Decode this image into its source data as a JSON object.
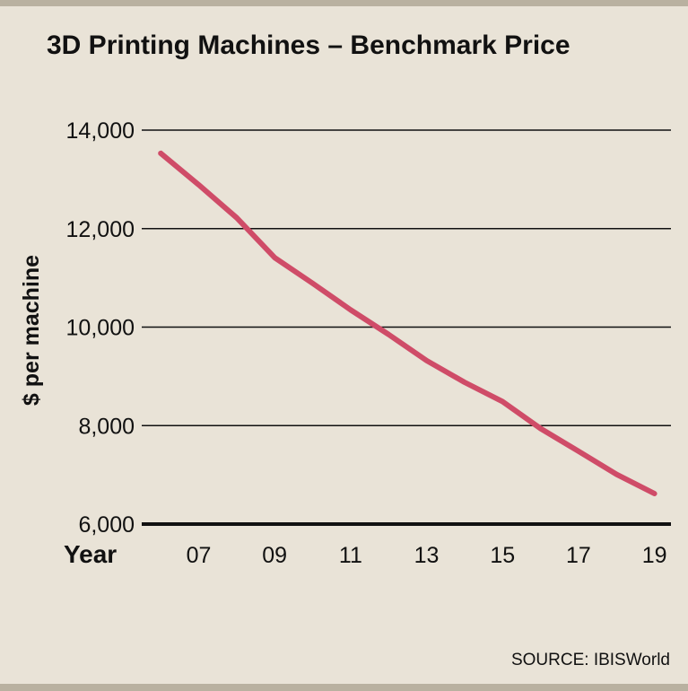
{
  "source": "SOURCE: IBISWorld",
  "colors": {
    "line": "#cf4c68",
    "grid": "#111111",
    "background": "#e9e3d7",
    "rule": "#b9b1a0"
  },
  "chart_data": {
    "type": "line",
    "title": "3D Printing Machines – Benchmark Price",
    "xlabel": "Year",
    "ylabel": "$ per machine",
    "xlim": [
      2005.5,
      2019.6
    ],
    "ylim": [
      6000,
      14000
    ],
    "y_ticks": [
      6000,
      8000,
      10000,
      12000,
      14000
    ],
    "y_tick_labels": [
      "6,000",
      "8,000",
      "10,000",
      "12,000",
      "14,000"
    ],
    "x_ticks": [
      2007,
      2009,
      2011,
      2013,
      2015,
      2017,
      2019
    ],
    "x_tick_labels": [
      "07",
      "09",
      "11",
      "13",
      "15",
      "17",
      "19"
    ],
    "grid": true,
    "series": [
      {
        "x": [
          2006,
          2007,
          2008,
          2009,
          2010,
          2011,
          2012,
          2013,
          2014,
          2015,
          2016,
          2017,
          2018,
          2019
        ],
        "y": [
          13530,
          12890,
          12220,
          11410,
          10890,
          10350,
          9850,
          9320,
          8880,
          8490,
          7940,
          7480,
          7010,
          6620
        ]
      }
    ]
  }
}
